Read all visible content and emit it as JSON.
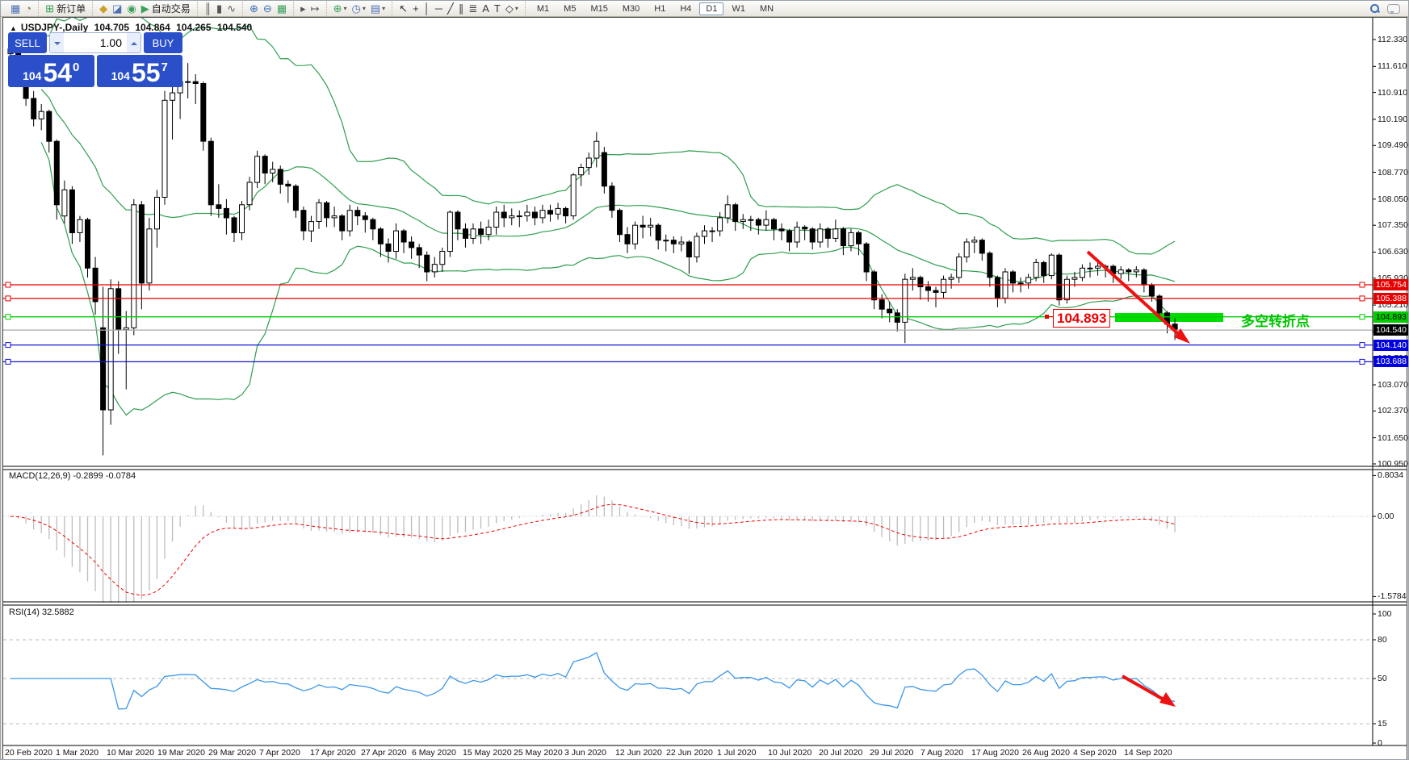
{
  "toolbar": {
    "groups": [
      [
        {
          "n": "market-watch-icon",
          "g": "▦",
          "c": "#4a6fb5"
        },
        {
          "n": "strategy-tester-icon",
          "g": "◔",
          "c": "#8a7f55"
        }
      ],
      [
        {
          "n": "new-order-icon",
          "g": "⊞",
          "c": "#2f9e4f",
          "label": "新订单"
        }
      ],
      [
        {
          "n": "metaeditor-icon",
          "g": "◆",
          "c": "#c8a028"
        },
        {
          "n": "terminal-icon",
          "g": "◪",
          "c": "#4a6fb5"
        },
        {
          "n": "signals-icon",
          "g": "◉",
          "c": "#3aa05a"
        },
        {
          "n": "autotrading-icon",
          "g": "▶",
          "c": "#3aa05a",
          "label": "自动交易"
        }
      ],
      [
        {
          "n": "bar-chart-icon",
          "g": "║",
          "c": "#555"
        },
        {
          "n": "candlestick-chart-icon",
          "g": "▮",
          "c": "#555"
        },
        {
          "n": "line-chart-icon",
          "g": "∿",
          "c": "#555"
        }
      ],
      [
        {
          "n": "zoom-in-icon",
          "g": "⊕",
          "c": "#3b6fb4"
        },
        {
          "n": "zoom-out-icon",
          "g": "⊖",
          "c": "#3b6fb4"
        },
        {
          "n": "tile-windows-icon",
          "g": "▦",
          "c": "#3aa05a"
        }
      ],
      [
        {
          "n": "auto-scroll-icon",
          "g": "▸",
          "c": "#555"
        },
        {
          "n": "chart-shift-icon",
          "g": "↦",
          "c": "#555"
        }
      ],
      [
        {
          "n": "indicators-icon",
          "g": "⊕",
          "c": "#3aa05a",
          "caret": true
        },
        {
          "n": "periods-icon",
          "g": "◷",
          "c": "#4a6fb5",
          "caret": true
        },
        {
          "n": "templates-icon",
          "g": "▤",
          "c": "#4a6fb5",
          "caret": true
        }
      ],
      [
        {
          "n": "cursor-icon",
          "g": "↖",
          "c": "#333"
        },
        {
          "n": "crosshair-icon",
          "g": "+",
          "c": "#333"
        },
        {
          "n": "vertical-line-icon",
          "g": "│",
          "c": "#333"
        },
        {
          "n": "horizontal-line-icon",
          "g": "─",
          "c": "#333"
        },
        {
          "n": "trendline-icon",
          "g": "╱",
          "c": "#333"
        },
        {
          "n": "channel-icon",
          "g": "∥",
          "c": "#333"
        },
        {
          "n": "fibonacci-icon",
          "g": "≣",
          "c": "#333"
        },
        {
          "n": "text-icon",
          "g": "A",
          "c": "#333"
        },
        {
          "n": "label-icon",
          "g": "T",
          "c": "#333"
        },
        {
          "n": "arrows-icon",
          "g": "◇",
          "c": "#333",
          "caret": true
        }
      ]
    ],
    "timeframes": [
      "M1",
      "M5",
      "M15",
      "M30",
      "H1",
      "H4",
      "D1",
      "W1",
      "MN"
    ],
    "active_timeframe": "D1"
  },
  "chart_header": {
    "collapse_icon": "▲",
    "symbol_period": "USDJPY-,Daily",
    "open": "104.705",
    "high": "104.864",
    "low": "104.265",
    "close": "104.540"
  },
  "trade_panel": {
    "sell_label": "SELL",
    "buy_label": "BUY",
    "volume": "1.00",
    "sell_price_prefix": "104",
    "sell_price_big": "54",
    "sell_price_sup": "0",
    "buy_price_prefix": "104",
    "buy_price_big": "55",
    "buy_price_sup": "7",
    "accent_color": "#2a4fc9"
  },
  "main_chart": {
    "price_max": 112.33,
    "price_min": 100.95,
    "y_axis_ticks": [
      "112.330",
      "111.610",
      "110.910",
      "110.190",
      "109.490",
      "108.770",
      "108.050",
      "107.350",
      "106.630",
      "105.930",
      "105.210",
      "104.490",
      "103.790",
      "103.070",
      "102.370",
      "101.650",
      "100.950"
    ],
    "hlines": [
      {
        "price": "105.754",
        "value": 105.754,
        "line": "#e60000",
        "chip_bg": "#e60000",
        "chip_fg": "#ffffff",
        "endsq": true
      },
      {
        "price": "105.388",
        "value": 105.388,
        "line": "#e60000",
        "chip_bg": "#e60000",
        "chip_fg": "#ffffff",
        "endsq": true
      },
      {
        "price": "104.893",
        "value": 104.893,
        "line": "#00cc00",
        "chip_bg": "#00cc00",
        "chip_fg": "#000000",
        "endsq": true
      },
      {
        "price": "104.540",
        "value": 104.54,
        "line": "#aaaaaa",
        "chip_bg": "#000000",
        "chip_fg": "#ffffff",
        "endsq": false
      },
      {
        "price": "104.140",
        "value": 104.14,
        "line": "#1414d2",
        "chip_bg": "#0000e0",
        "chip_fg": "#ffffff",
        "endsq": true
      },
      {
        "price": "103.688",
        "value": 103.688,
        "line": "#1414d2",
        "chip_bg": "#0000e0",
        "chip_fg": "#ffffff",
        "endsq": true
      }
    ],
    "annotation_label": "104.893",
    "annotation_text": "多空转折点",
    "colors": {
      "bull": "#ffffff",
      "bear": "#000000",
      "outline": "#000000",
      "bollinger": "#2f9e4f",
      "highlight_bar": "#00dd00",
      "arrow": "#ee1111"
    },
    "candles": [
      [
        111.95,
        112.22,
        111.85,
        112.08
      ],
      [
        112.08,
        112.18,
        111.45,
        111.55
      ],
      [
        111.3,
        111.4,
        110.55,
        110.75
      ],
      [
        110.75,
        110.95,
        110.0,
        110.2
      ],
      [
        110.2,
        110.6,
        109.9,
        110.4
      ],
      [
        110.4,
        110.45,
        109.3,
        109.6
      ],
      [
        109.6,
        109.65,
        107.5,
        107.9
      ],
      [
        107.6,
        108.55,
        107.4,
        108.3
      ],
      [
        108.3,
        108.4,
        106.85,
        107.15
      ],
      [
        107.15,
        107.6,
        106.9,
        107.5
      ],
      [
        107.5,
        107.55,
        105.95,
        106.2
      ],
      [
        106.2,
        106.5,
        104.95,
        105.3
      ],
      [
        104.6,
        105.7,
        101.18,
        102.4
      ],
      [
        102.4,
        105.9,
        102.0,
        105.65
      ],
      [
        105.65,
        105.85,
        103.9,
        104.55
      ],
      [
        104.55,
        105.05,
        102.95,
        104.6
      ],
      [
        104.6,
        108.05,
        104.4,
        107.9
      ],
      [
        107.9,
        108.0,
        105.1,
        105.8
      ],
      [
        105.8,
        107.55,
        105.6,
        107.25
      ],
      [
        107.25,
        108.3,
        106.75,
        108.1
      ],
      [
        108.1,
        110.95,
        107.9,
        110.7
      ],
      [
        110.7,
        111.45,
        109.65,
        110.9
      ],
      [
        110.9,
        111.55,
        110.2,
        111.2
      ],
      [
        111.2,
        111.7,
        110.75,
        111.2
      ],
      [
        111.2,
        111.4,
        110.6,
        111.15
      ],
      [
        111.15,
        111.2,
        109.35,
        109.6
      ],
      [
        109.6,
        109.7,
        107.6,
        107.9
      ],
      [
        107.9,
        108.45,
        107.55,
        107.8
      ],
      [
        107.8,
        108.05,
        107.1,
        107.55
      ],
      [
        107.55,
        107.6,
        106.9,
        107.15
      ],
      [
        107.15,
        108.0,
        106.95,
        107.9
      ],
      [
        107.9,
        108.65,
        107.75,
        108.5
      ],
      [
        108.5,
        109.35,
        108.35,
        109.2
      ],
      [
        109.2,
        109.25,
        108.45,
        108.75
      ],
      [
        108.75,
        109.05,
        108.5,
        108.85
      ],
      [
        108.85,
        108.95,
        108.2,
        108.45
      ],
      [
        108.45,
        108.55,
        107.95,
        108.4
      ],
      [
        108.4,
        108.45,
        107.55,
        107.75
      ],
      [
        107.75,
        107.85,
        106.95,
        107.2
      ],
      [
        107.2,
        107.6,
        106.9,
        107.45
      ],
      [
        107.45,
        108.05,
        107.25,
        107.95
      ],
      [
        107.95,
        108.0,
        107.3,
        107.55
      ],
      [
        107.55,
        107.85,
        107.3,
        107.6
      ],
      [
        107.6,
        107.65,
        106.95,
        107.2
      ],
      [
        107.2,
        107.9,
        107.05,
        107.75
      ],
      [
        107.75,
        107.85,
        107.35,
        107.6
      ],
      [
        107.6,
        107.7,
        107.15,
        107.5
      ],
      [
        107.5,
        107.55,
        106.95,
        107.25
      ],
      [
        107.25,
        107.3,
        106.5,
        106.85
      ],
      [
        106.85,
        107.0,
        106.35,
        106.65
      ],
      [
        106.65,
        107.4,
        106.45,
        107.2
      ],
      [
        107.2,
        107.25,
        106.6,
        106.9
      ],
      [
        106.9,
        107.05,
        106.45,
        106.75
      ],
      [
        106.75,
        106.85,
        106.2,
        106.55
      ],
      [
        106.55,
        106.65,
        105.85,
        106.1
      ],
      [
        106.1,
        106.5,
        105.95,
        106.3
      ],
      [
        106.3,
        106.75,
        106.1,
        106.65
      ],
      [
        106.65,
        107.75,
        106.5,
        107.7
      ],
      [
        107.7,
        107.75,
        106.95,
        107.25
      ],
      [
        107.25,
        107.4,
        106.75,
        107.0
      ],
      [
        107.0,
        107.4,
        106.85,
        107.25
      ],
      [
        107.25,
        107.45,
        106.85,
        107.1
      ],
      [
        107.1,
        107.5,
        106.95,
        107.3
      ],
      [
        107.3,
        107.85,
        107.1,
        107.7
      ],
      [
        107.7,
        107.9,
        107.3,
        107.55
      ],
      [
        107.55,
        107.8,
        107.35,
        107.6
      ],
      [
        107.6,
        107.75,
        107.3,
        107.6
      ],
      [
        107.6,
        107.9,
        107.45,
        107.7
      ],
      [
        107.7,
        107.85,
        107.35,
        107.55
      ],
      [
        107.55,
        107.9,
        107.4,
        107.75
      ],
      [
        107.75,
        107.9,
        107.45,
        107.65
      ],
      [
        107.65,
        107.95,
        107.5,
        107.8
      ],
      [
        107.8,
        107.85,
        107.4,
        107.6
      ],
      [
        107.6,
        108.75,
        107.5,
        108.7
      ],
      [
        108.7,
        109.0,
        108.4,
        108.9
      ],
      [
        108.9,
        109.3,
        108.7,
        109.15
      ],
      [
        109.15,
        109.85,
        108.9,
        109.6
      ],
      [
        109.3,
        109.45,
        108.2,
        108.4
      ],
      [
        108.4,
        108.5,
        107.55,
        107.75
      ],
      [
        107.75,
        107.8,
        106.9,
        107.1
      ],
      [
        107.1,
        107.3,
        106.6,
        106.85
      ],
      [
        106.85,
        107.45,
        106.7,
        107.35
      ],
      [
        107.35,
        107.6,
        107.0,
        107.3
      ],
      [
        107.3,
        107.55,
        107.05,
        107.35
      ],
      [
        107.35,
        107.4,
        106.7,
        106.95
      ],
      [
        106.95,
        107.1,
        106.65,
        106.95
      ],
      [
        106.95,
        107.05,
        106.6,
        106.85
      ],
      [
        106.85,
        107.05,
        106.65,
        106.9
      ],
      [
        106.9,
        106.95,
        106.05,
        106.5
      ],
      [
        106.5,
        107.15,
        106.35,
        107.05
      ],
      [
        107.05,
        107.35,
        106.85,
        107.2
      ],
      [
        107.2,
        107.3,
        106.9,
        107.2
      ],
      [
        107.2,
        107.7,
        107.05,
        107.55
      ],
      [
        107.55,
        108.15,
        107.4,
        107.9
      ],
      [
        107.9,
        107.95,
        107.2,
        107.45
      ],
      [
        107.45,
        107.65,
        107.25,
        107.5
      ],
      [
        107.5,
        107.6,
        107.2,
        107.5
      ],
      [
        107.5,
        107.55,
        107.1,
        107.35
      ],
      [
        107.35,
        107.75,
        107.2,
        107.5
      ],
      [
        107.5,
        107.55,
        106.95,
        107.25
      ],
      [
        107.25,
        107.4,
        106.95,
        107.2
      ],
      [
        107.2,
        107.25,
        106.65,
        106.9
      ],
      [
        106.9,
        107.45,
        106.75,
        107.3
      ],
      [
        107.3,
        107.35,
        106.95,
        107.25
      ],
      [
        107.25,
        107.3,
        106.7,
        106.9
      ],
      [
        106.9,
        107.4,
        106.75,
        107.25
      ],
      [
        107.25,
        107.3,
        106.75,
        107.0
      ],
      [
        107.0,
        107.5,
        106.9,
        107.25
      ],
      [
        107.25,
        107.3,
        106.55,
        106.8
      ],
      [
        106.8,
        107.25,
        106.65,
        107.15
      ],
      [
        107.15,
        107.2,
        106.55,
        106.85
      ],
      [
        106.85,
        106.9,
        105.85,
        106.1
      ],
      [
        106.1,
        106.15,
        105.1,
        105.35
      ],
      [
        105.35,
        105.5,
        104.85,
        105.1
      ],
      [
        105.1,
        105.3,
        104.75,
        105.0
      ],
      [
        105.0,
        105.1,
        104.5,
        104.75
      ],
      [
        104.75,
        106.05,
        104.19,
        105.9
      ],
      [
        105.9,
        106.2,
        105.6,
        105.95
      ],
      [
        105.95,
        106.0,
        105.35,
        105.7
      ],
      [
        105.7,
        105.85,
        105.3,
        105.6
      ],
      [
        105.6,
        105.7,
        105.15,
        105.55
      ],
      [
        105.55,
        106.0,
        105.4,
        105.9
      ],
      [
        105.9,
        106.05,
        105.65,
        105.95
      ],
      [
        105.95,
        106.6,
        105.8,
        106.5
      ],
      [
        106.5,
        107.0,
        106.35,
        106.9
      ],
      [
        106.9,
        107.05,
        106.6,
        106.95
      ],
      [
        106.95,
        107.0,
        106.4,
        106.6
      ],
      [
        106.6,
        106.65,
        105.7,
        105.95
      ],
      [
        105.95,
        106.0,
        105.15,
        105.4
      ],
      [
        105.4,
        106.2,
        105.25,
        106.1
      ],
      [
        106.1,
        106.15,
        105.55,
        105.8
      ],
      [
        105.8,
        105.95,
        105.55,
        105.8
      ],
      [
        105.8,
        106.05,
        105.65,
        105.95
      ],
      [
        105.95,
        106.45,
        105.85,
        106.35
      ],
      [
        106.35,
        106.4,
        105.8,
        106.0
      ],
      [
        106.0,
        106.6,
        105.9,
        106.55
      ],
      [
        106.55,
        106.6,
        105.2,
        105.35
      ],
      [
        105.35,
        106.0,
        105.25,
        105.9
      ],
      [
        105.9,
        106.1,
        105.7,
        105.95
      ],
      [
        105.95,
        106.3,
        105.85,
        106.2
      ],
      [
        106.2,
        106.35,
        105.95,
        106.2
      ],
      [
        106.2,
        106.35,
        106.0,
        106.25
      ],
      [
        106.25,
        106.3,
        105.95,
        106.25
      ],
      [
        106.25,
        106.3,
        105.8,
        106.05
      ],
      [
        106.05,
        106.25,
        105.9,
        106.15
      ],
      [
        106.15,
        106.2,
        105.85,
        106.1
      ],
      [
        106.1,
        106.25,
        105.95,
        106.15
      ],
      [
        106.15,
        106.2,
        105.55,
        105.75
      ],
      [
        105.75,
        105.8,
        105.3,
        105.45
      ],
      [
        105.45,
        105.5,
        104.85,
        105.0
      ],
      [
        105.0,
        105.05,
        104.45,
        104.7
      ],
      [
        104.7,
        104.86,
        104.27,
        104.54
      ]
    ]
  },
  "macd": {
    "label": "MACD(12,26,9) -0.2899 -0.0784",
    "axis": [
      {
        "label": "0.8034",
        "value": 0.8034
      },
      {
        "label": "0.00",
        "value": 0
      },
      {
        "label": "-1.5784",
        "value": -1.5784
      }
    ],
    "hist_color": "#bdbdbd",
    "signal_color": "#f00000"
  },
  "rsi": {
    "label": "RSI(14) 32.5882",
    "axis": [
      {
        "label": "100",
        "value": 100
      },
      {
        "label": "80",
        "value": 80
      },
      {
        "label": "50",
        "value": 50
      },
      {
        "label": "15",
        "value": 15
      },
      {
        "label": "0",
        "value": 0
      }
    ],
    "levels": [
      80,
      50,
      15
    ],
    "line_color": "#3a96e8"
  },
  "x_axis": {
    "labels": [
      "20 Feb 2020",
      "1 Mar 2020",
      "10 Mar 2020",
      "19 Mar 2020",
      "29 Mar 2020",
      "7 Apr 2020",
      "17 Apr 2020",
      "27 Apr 2020",
      "6 May 2020",
      "15 May 2020",
      "25 May 2020",
      "3 Jun 2020",
      "12 Jun 2020",
      "22 Jun 2020",
      "1 Jul 2020",
      "10 Jul 2020",
      "20 Jul 2020",
      "29 Jul 2020",
      "7 Aug 2020",
      "17 Aug 2020",
      "26 Aug 2020",
      "4 Sep 2020",
      "14 Sep 2020"
    ]
  }
}
